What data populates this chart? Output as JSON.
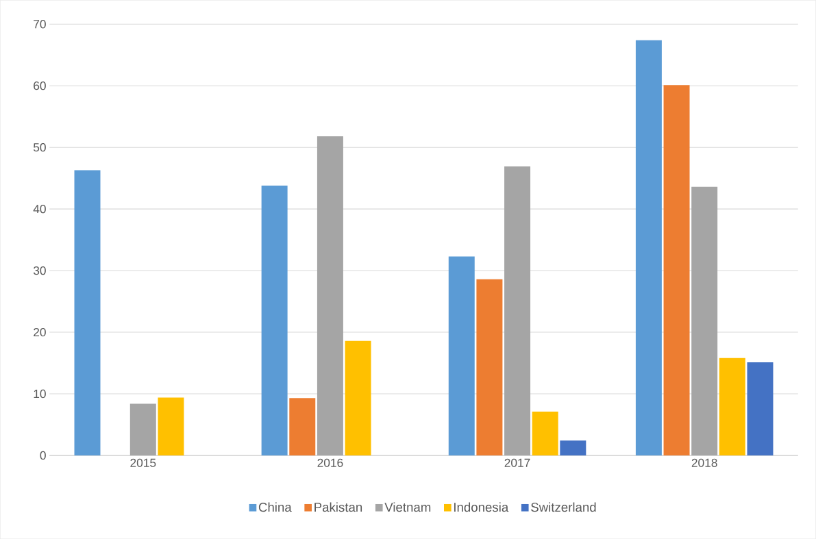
{
  "chart_data": {
    "type": "bar",
    "categories": [
      "2015",
      "2016",
      "2017",
      "2018"
    ],
    "series": [
      {
        "name": "China",
        "color": "#5b9bd5",
        "values": [
          46.3,
          43.8,
          32.3,
          67.4
        ]
      },
      {
        "name": "Pakistan",
        "color": "#ed7d31",
        "values": [
          null,
          9.3,
          28.6,
          60.1
        ]
      },
      {
        "name": "Vietnam",
        "color": "#a5a5a5",
        "values": [
          8.4,
          51.8,
          46.9,
          43.6
        ]
      },
      {
        "name": "Indonesia",
        "color": "#ffc000",
        "values": [
          9.4,
          18.6,
          7.1,
          15.8
        ]
      },
      {
        "name": "Switzerland",
        "color": "#4472c4",
        "values": [
          null,
          null,
          2.4,
          15.1
        ]
      }
    ],
    "ylim": [
      0,
      70
    ],
    "yticks": [
      0,
      10,
      20,
      30,
      40,
      50,
      60,
      70
    ],
    "grid": "y",
    "legend": "bottom"
  }
}
